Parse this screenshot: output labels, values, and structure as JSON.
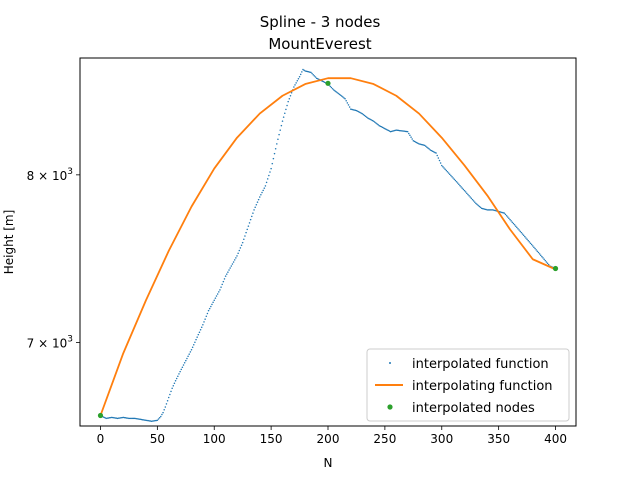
{
  "chart_data": {
    "type": "line",
    "title": "Spline - 3 nodes",
    "subtitle": "MountEverest",
    "xlabel": "N",
    "ylabel": "Height [m]",
    "xlim": [
      -18,
      418
    ],
    "ylim": [
      6550,
      8780
    ],
    "y_scale": "log",
    "x_ticks": [
      0,
      50,
      100,
      150,
      200,
      250,
      300,
      350,
      400
    ],
    "y_ticks": [
      {
        "value": 7000,
        "base": "7 × 10",
        "exp": "3"
      },
      {
        "value": 8000,
        "base": "8 × 10",
        "exp": "3"
      }
    ],
    "grid": false,
    "legend_position": "lower-right",
    "colors": {
      "interpolated_function": "#1f77b4",
      "interpolating_function": "#ff7f0e",
      "interpolated_nodes": "#2ca02c"
    },
    "series": [
      {
        "name": "interpolated function",
        "style": "dots",
        "x": [
          0,
          5,
          10,
          15,
          20,
          25,
          30,
          35,
          40,
          45,
          50,
          53,
          55,
          57,
          60,
          63,
          66,
          70,
          75,
          80,
          85,
          90,
          95,
          100,
          105,
          110,
          115,
          120,
          125,
          130,
          135,
          140,
          145,
          150,
          155,
          160,
          165,
          170,
          175,
          178,
          180,
          185,
          190,
          195,
          200,
          205,
          210,
          215,
          220,
          225,
          230,
          235,
          240,
          245,
          250,
          255,
          260,
          265,
          270,
          275,
          280,
          285,
          290,
          295,
          300,
          305,
          310,
          315,
          320,
          325,
          330,
          335,
          340,
          345,
          350,
          355,
          360,
          365,
          370,
          375,
          380,
          385,
          390,
          395,
          400
        ],
        "y": [
          6605,
          6590,
          6595,
          6590,
          6595,
          6590,
          6590,
          6585,
          6580,
          6575,
          6580,
          6600,
          6620,
          6650,
          6700,
          6750,
          6790,
          6840,
          6900,
          6960,
          7030,
          7100,
          7180,
          7240,
          7300,
          7380,
          7440,
          7500,
          7580,
          7680,
          7780,
          7860,
          7930,
          8040,
          8200,
          8350,
          8480,
          8580,
          8650,
          8700,
          8690,
          8680,
          8640,
          8620,
          8600,
          8560,
          8530,
          8500,
          8430,
          8420,
          8400,
          8370,
          8350,
          8320,
          8300,
          8280,
          8290,
          8285,
          8280,
          8220,
          8200,
          8190,
          8160,
          8140,
          8060,
          8020,
          7980,
          7940,
          7900,
          7860,
          7820,
          7790,
          7780,
          7780,
          7770,
          7760,
          7720,
          7680,
          7640,
          7600,
          7560,
          7520,
          7480,
          7440,
          7425
        ]
      },
      {
        "name": "interpolating function",
        "style": "line",
        "x": [
          0,
          20,
          40,
          60,
          80,
          100,
          120,
          140,
          160,
          180,
          200,
          220,
          240,
          260,
          280,
          300,
          320,
          340,
          360,
          380,
          400
        ],
        "y": [
          6605,
          6940,
          7240,
          7530,
          7800,
          8040,
          8240,
          8400,
          8520,
          8600,
          8640,
          8640,
          8600,
          8520,
          8400,
          8240,
          8060,
          7870,
          7660,
          7480,
          7420
        ]
      },
      {
        "name": "interpolated nodes",
        "style": "markers",
        "x": [
          0,
          200,
          400
        ],
        "y": [
          6605,
          8605,
          7425
        ]
      }
    ]
  }
}
